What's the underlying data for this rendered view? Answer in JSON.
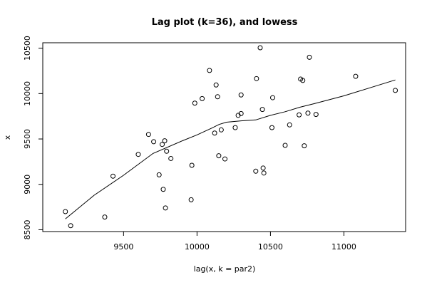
{
  "chart_data": {
    "type": "scatter",
    "title": "Lag plot (k=36), and lowess",
    "xlabel": "lag(x, k = par2)",
    "ylabel": "x",
    "xlim": [
      8950,
      11420
    ],
    "ylim": [
      8480,
      10560
    ],
    "xticks": [
      9500,
      10000,
      10500,
      11000
    ],
    "xtick_labels": [
      "9500",
      "10000",
      "10500",
      "11000"
    ],
    "yticks": [
      8500,
      9000,
      9500,
      10000,
      10500
    ],
    "ytick_labels": [
      "8500",
      "9000",
      "9500",
      "10000",
      "10500"
    ],
    "grid": false,
    "legend": "none",
    "points": {
      "x": [
        9104,
        9140,
        9372,
        9428,
        9600,
        9670,
        9705,
        9742,
        9763,
        9770,
        9780,
        9785,
        9793,
        9822,
        9960,
        9965,
        9985,
        10035,
        10085,
        10120,
        10130,
        10140,
        10148,
        10165,
        10190,
        10260,
        10280,
        10300,
        10300,
        10400,
        10405,
        10430,
        10445,
        10450,
        10455,
        10510,
        10515,
        10600,
        10630,
        10695,
        10705,
        10720,
        10730,
        10755,
        10765,
        10810,
        11080,
        11350
      ],
      "y": [
        8700,
        8545,
        8640,
        9090,
        9330,
        9550,
        9470,
        9105,
        9440,
        8945,
        9480,
        8740,
        9365,
        9285,
        8830,
        9210,
        9895,
        9945,
        10255,
        9565,
        10095,
        9965,
        9315,
        9600,
        9280,
        9625,
        9760,
        9780,
        9985,
        9145,
        10165,
        10505,
        9825,
        9180,
        9125,
        9625,
        9955,
        9430,
        9655,
        9765,
        10160,
        10145,
        9425,
        9785,
        10400,
        9770,
        10190,
        10035
      ]
    },
    "lowess": {
      "x": [
        9104,
        9300,
        9500,
        9700,
        9900,
        10000,
        10100,
        10150,
        10200,
        10300,
        10400,
        10500,
        10600,
        10700,
        10800,
        11000,
        11350
      ],
      "y": [
        8620,
        8880,
        9100,
        9340,
        9480,
        9545,
        9620,
        9660,
        9685,
        9700,
        9710,
        9760,
        9800,
        9850,
        9890,
        9975,
        10150
      ]
    }
  }
}
